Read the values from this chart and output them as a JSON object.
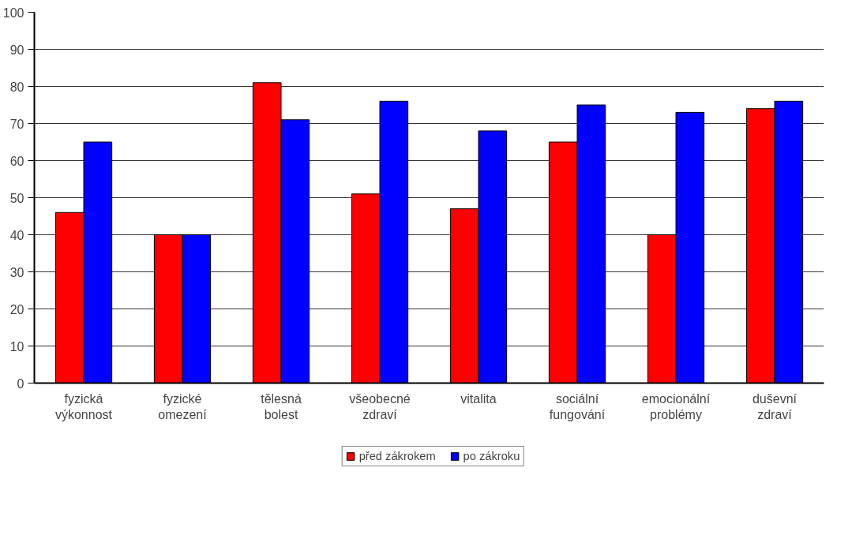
{
  "chart_data": {
    "type": "bar",
    "categories": [
      "fyzická výkonnost",
      "fyzické omezení",
      "tělesná bolest",
      "všeobecné zdraví",
      "vitalita",
      "sociální fungování",
      "emocionální problémy",
      "duševní zdraví"
    ],
    "series": [
      {
        "name": "před zákrokem",
        "color": "#ff0000",
        "values": [
          46,
          40,
          81,
          51,
          47,
          65,
          40,
          74
        ]
      },
      {
        "name": "po zákroku",
        "color": "#0000ff",
        "values": [
          65,
          40,
          71,
          76,
          68,
          75,
          73,
          76
        ]
      }
    ],
    "ylim": [
      0,
      100
    ],
    "yticks": [
      0,
      10,
      20,
      30,
      40,
      50,
      60,
      70,
      80,
      90,
      100
    ],
    "grid": "y",
    "legend": "bottom"
  }
}
